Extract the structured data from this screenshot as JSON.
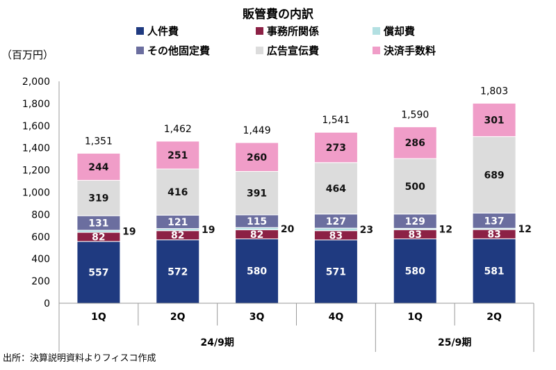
{
  "chart_data": {
    "type": "bar",
    "stacked": true,
    "title": "販管費の内訳",
    "unit_label": "（百万円）",
    "ylim": [
      0,
      2000
    ],
    "yticks": [
      0,
      200,
      400,
      600,
      800,
      1000,
      1200,
      1400,
      1600,
      1800,
      2000
    ],
    "ytick_labels": [
      "0",
      "200",
      "400",
      "600",
      "800",
      "1,000",
      "1,200",
      "1,400",
      "1,600",
      "1,800",
      "2,000"
    ],
    "categories": [
      "1Q",
      "2Q",
      "3Q",
      "4Q",
      "1Q",
      "2Q"
    ],
    "groups": [
      {
        "label": "24/9期",
        "count": 4
      },
      {
        "label": "25/9期",
        "count": 2
      }
    ],
    "series": [
      {
        "name": "人件費",
        "color": "#1f3a80",
        "values": [
          557,
          572,
          580,
          571,
          580,
          581
        ],
        "label_color": "#ffffff"
      },
      {
        "name": "事務所関係",
        "color": "#8c2145",
        "values": [
          82,
          82,
          82,
          83,
          83,
          83
        ],
        "label_color": "#ffffff"
      },
      {
        "name": "償却費",
        "color": "#b3e0e2",
        "values": [
          19,
          19,
          20,
          23,
          12,
          12
        ],
        "label_color": "#111111"
      },
      {
        "name": "その他固定費",
        "color": "#6b6e9f",
        "values": [
          131,
          121,
          115,
          127,
          129,
          137
        ],
        "label_color": "#ffffff"
      },
      {
        "name": "広告宣伝費",
        "color": "#dcdcdc",
        "values": [
          319,
          416,
          391,
          464,
          500,
          689
        ],
        "label_color": "#111111"
      },
      {
        "name": "決済手数料",
        "color": "#f09dc8",
        "values": [
          244,
          251,
          260,
          273,
          286,
          301
        ],
        "label_color": "#111111"
      }
    ],
    "segment_labels": {
      "人件費": [
        "557",
        "572",
        "580",
        "571",
        "580",
        "581"
      ],
      "事務所関係": [
        "82",
        "82",
        "82",
        "83",
        "83",
        "83"
      ],
      "償却費": [
        "19",
        "19",
        "20",
        "23",
        "12",
        "12"
      ],
      "その他固定費": [
        "131",
        "121",
        "115",
        "127",
        "129",
        "137"
      ],
      "広告宣伝費": [
        "319",
        "416",
        "391",
        "464",
        "500",
        "689"
      ],
      "決済手数料": [
        "244",
        "251",
        "260",
        "273",
        "286",
        "301"
      ]
    },
    "totals": [
      1351,
      1462,
      1449,
      1541,
      1590,
      1803
    ],
    "total_labels": [
      "1,351",
      "1,462",
      "1,449",
      "1,541",
      "1,590",
      "1,803"
    ],
    "legend_columns": 3,
    "legend_placement": "top",
    "grid": false
  },
  "source_note": "出所：決算説明資料よりフィスコ作成"
}
